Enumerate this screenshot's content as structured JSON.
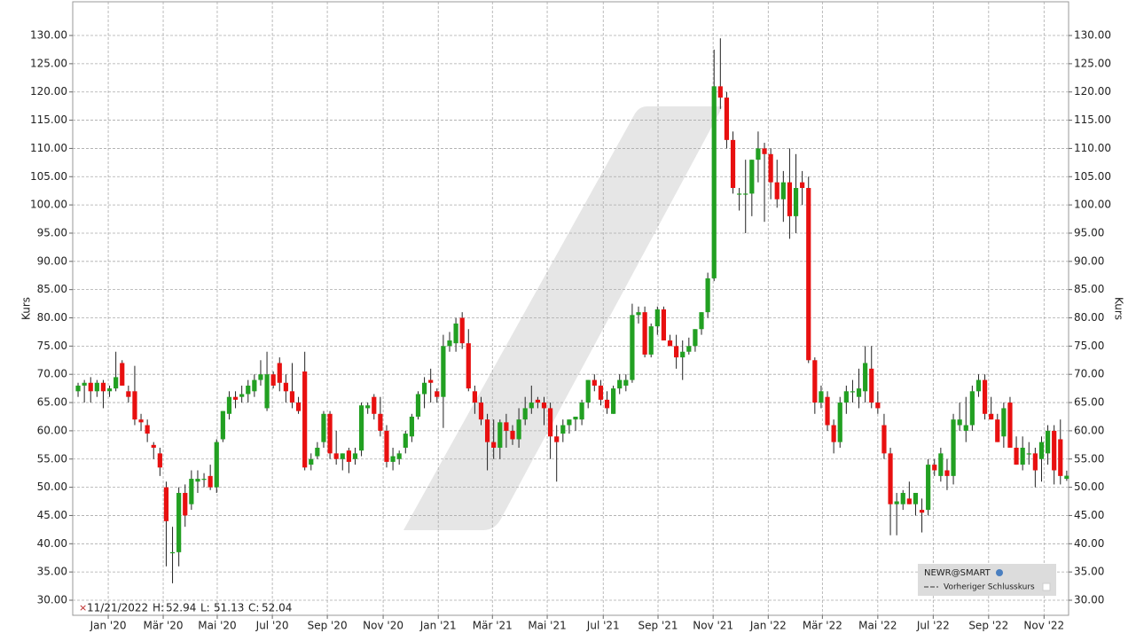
{
  "chart_data": {
    "type": "candlestick",
    "y_label": "Kurs",
    "ylim": [
      27.33,
      135.97
    ],
    "yticks": [
      {
        "value": 30,
        "label": "30.00"
      },
      {
        "value": 35,
        "label": "35.00"
      },
      {
        "value": 40,
        "label": "40.00"
      },
      {
        "value": 45,
        "label": "45.00"
      },
      {
        "value": 50,
        "label": "50.00"
      },
      {
        "value": 55,
        "label": "55.00"
      },
      {
        "value": 60,
        "label": "60.00"
      },
      {
        "value": 65,
        "label": "65.00"
      },
      {
        "value": 70,
        "label": "70.00"
      },
      {
        "value": 75,
        "label": "75.00"
      },
      {
        "value": 80,
        "label": "80.00"
      },
      {
        "value": 85,
        "label": "85.00"
      },
      {
        "value": 90,
        "label": "90.00"
      },
      {
        "value": 95,
        "label": "95.00"
      },
      {
        "value": 100,
        "label": "100.00"
      },
      {
        "value": 105,
        "label": "105.00"
      },
      {
        "value": 110,
        "label": "110.00"
      },
      {
        "value": 115,
        "label": "115.00"
      },
      {
        "value": 120,
        "label": "120.00"
      },
      {
        "value": 125,
        "label": "125.00"
      },
      {
        "value": 130,
        "label": "130.00"
      }
    ],
    "xlim": [
      -0.85,
      157.3
    ],
    "xticks": [
      {
        "value": 4.79,
        "label": "Jan '20"
      },
      {
        "value": 13.52,
        "label": "Mär '20"
      },
      {
        "value": 22.1,
        "label": "Mai '20"
      },
      {
        "value": 30.85,
        "label": "Jul '20"
      },
      {
        "value": 39.58,
        "label": "Sep '20"
      },
      {
        "value": 48.45,
        "label": "Nov '20"
      },
      {
        "value": 57.2,
        "label": "Jan '21"
      },
      {
        "value": 65.8,
        "label": "Mär '21"
      },
      {
        "value": 74.5,
        "label": "Mai '21"
      },
      {
        "value": 83.4,
        "label": "Jul '21"
      },
      {
        "value": 92.1,
        "label": "Sep '21"
      },
      {
        "value": 100.85,
        "label": "Nov '21"
      },
      {
        "value": 109.6,
        "label": "Jan '22"
      },
      {
        "value": 118.2,
        "label": "Mär '22"
      },
      {
        "value": 127,
        "label": "Mai '22"
      },
      {
        "value": 135.8,
        "label": "Jul '22"
      },
      {
        "value": 144.6,
        "label": "Sep '22"
      },
      {
        "value": 153.4,
        "label": "Nov '22"
      }
    ],
    "grid": true,
    "up_color": "#22a022",
    "down_color": "#e81010",
    "x": [
      0,
      1,
      2,
      3,
      4,
      5,
      6,
      7,
      8,
      9,
      10,
      11,
      12,
      13,
      14,
      15,
      16,
      17,
      18,
      19,
      20,
      21,
      22,
      23,
      24,
      25,
      26,
      27,
      28,
      29,
      30,
      31,
      32,
      33,
      34,
      35,
      36,
      37,
      38,
      39,
      40,
      41,
      42,
      43,
      44,
      45,
      46,
      47,
      48,
      49,
      50,
      51,
      52,
      53,
      54,
      55,
      56,
      57,
      58,
      59,
      60,
      61,
      62,
      63,
      64,
      65,
      66,
      67,
      68,
      69,
      70,
      71,
      72,
      73,
      74,
      75,
      76,
      77,
      78,
      79,
      80,
      81,
      82,
      83,
      84,
      85,
      86,
      87,
      88,
      89,
      90,
      91,
      92,
      93,
      94,
      95,
      96,
      97,
      98,
      99,
      100,
      101,
      102,
      103,
      104,
      105,
      106,
      107,
      108,
      109,
      110,
      111,
      112,
      113,
      114,
      115,
      116,
      117,
      118,
      119,
      120,
      121,
      122,
      123,
      124,
      125,
      126,
      127,
      128,
      129,
      130,
      131,
      132,
      133,
      134,
      135,
      136,
      137,
      138,
      139,
      140,
      141,
      142,
      143,
      144,
      145,
      146,
      147,
      148,
      149,
      150,
      151,
      152,
      153,
      154,
      155,
      156,
      157
    ],
    "ohlc": [
      [
        67,
        68.5,
        66,
        68
      ],
      [
        68,
        69,
        65,
        68.5
      ],
      [
        68.5,
        69.5,
        65,
        67
      ],
      [
        67,
        69,
        66,
        68.5
      ],
      [
        68.5,
        69,
        64,
        67
      ],
      [
        67,
        68,
        66,
        67.5
      ],
      [
        67.5,
        74,
        67,
        69.5
      ],
      [
        72,
        72.5,
        68,
        68
      ],
      [
        67,
        68,
        65,
        66
      ],
      [
        67,
        71.5,
        61,
        62
      ],
      [
        62,
        63,
        60,
        61.5
      ],
      [
        61,
        62,
        58,
        59.5
      ],
      [
        57.5,
        58,
        55,
        57
      ],
      [
        56,
        57,
        52,
        53.5
      ],
      [
        50,
        51,
        36,
        44
      ],
      [
        38.5,
        43,
        33,
        38.5
      ],
      [
        38.5,
        50,
        36,
        49
      ],
      [
        49,
        50.5,
        43,
        45
      ],
      [
        47,
        53,
        46,
        51.5
      ],
      [
        51,
        53,
        49,
        51.5
      ],
      [
        51.5,
        52.5,
        50,
        51.5
      ],
      [
        52,
        54,
        49.5,
        50
      ],
      [
        50,
        58.5,
        49,
        58
      ],
      [
        58.5,
        63.5,
        58,
        63.5
      ],
      [
        63,
        67,
        62,
        66
      ],
      [
        66,
        67,
        64,
        65.5
      ],
      [
        66,
        68,
        65,
        66.5
      ],
      [
        66.5,
        69,
        65,
        68
      ],
      [
        67,
        70,
        66,
        69
      ],
      [
        69,
        72.5,
        68,
        70
      ],
      [
        64,
        74,
        63.5,
        70
      ],
      [
        70,
        70.5,
        67.5,
        68
      ],
      [
        72,
        73,
        67,
        68.5
      ],
      [
        68.5,
        70,
        65,
        67
      ],
      [
        67,
        72,
        64,
        65
      ],
      [
        65,
        66,
        63,
        63.5
      ],
      [
        70.5,
        74,
        53,
        53.5
      ],
      [
        54,
        56,
        53,
        55
      ],
      [
        55.5,
        58,
        55,
        57
      ],
      [
        58,
        63.5,
        57,
        63
      ],
      [
        63,
        63.5,
        55,
        56
      ],
      [
        56,
        60,
        54,
        55
      ],
      [
        55,
        56,
        53,
        56
      ],
      [
        56.5,
        57,
        52.5,
        54.5
      ],
      [
        55,
        57,
        54,
        56
      ],
      [
        56.5,
        65,
        55.5,
        64.5
      ],
      [
        64,
        65,
        63,
        64.5
      ],
      [
        66,
        66.5,
        62,
        63
      ],
      [
        63,
        66,
        59,
        60
      ],
      [
        60,
        61,
        53.5,
        54.5
      ],
      [
        54.5,
        57,
        53,
        55.5
      ],
      [
        55,
        56.5,
        54,
        56
      ],
      [
        57,
        60,
        56,
        59.5
      ],
      [
        59,
        63,
        58,
        62.5
      ],
      [
        62.5,
        67,
        62,
        66.5
      ],
      [
        66.5,
        69.5,
        64,
        68.5
      ],
      [
        69,
        71,
        65,
        68.5
      ],
      [
        67,
        67.5,
        65,
        66
      ],
      [
        66,
        77,
        60.5,
        75
      ],
      [
        75,
        77.5,
        74,
        76
      ],
      [
        75.5,
        80,
        74,
        79
      ],
      [
        80,
        81,
        74.5,
        75.5
      ],
      [
        75.5,
        78,
        67,
        67.5
      ],
      [
        67,
        68,
        63,
        65
      ],
      [
        65,
        66,
        61,
        62
      ],
      [
        62,
        63,
        53,
        58
      ],
      [
        58,
        62,
        55,
        57
      ],
      [
        57,
        62,
        55,
        61.5
      ],
      [
        61.5,
        63,
        57,
        60
      ],
      [
        60,
        61,
        57.5,
        58.5
      ],
      [
        58.5,
        64,
        57,
        62
      ],
      [
        62,
        66,
        61,
        64
      ],
      [
        64,
        68,
        63,
        65
      ],
      [
        65.5,
        66,
        64,
        65
      ],
      [
        65,
        66,
        61,
        64
      ],
      [
        64,
        65,
        55,
        59
      ],
      [
        59,
        61,
        51,
        58
      ],
      [
        59.5,
        62,
        58,
        61
      ],
      [
        61,
        62,
        59.5,
        62
      ],
      [
        62,
        62.5,
        60,
        62.5
      ],
      [
        62,
        65.5,
        61,
        65
      ],
      [
        65,
        69,
        64,
        69
      ],
      [
        69,
        70,
        67,
        68
      ],
      [
        68,
        69,
        64.5,
        65.5
      ],
      [
        65.5,
        67,
        63,
        64
      ],
      [
        63,
        68,
        63,
        67.5
      ],
      [
        67.5,
        70,
        66.5,
        69
      ],
      [
        68,
        70,
        67,
        69
      ],
      [
        69,
        82.5,
        68.5,
        80.5
      ],
      [
        80.5,
        82,
        79,
        81
      ],
      [
        81,
        82,
        73,
        73.5
      ],
      [
        73.5,
        79,
        73,
        78.5
      ],
      [
        78.5,
        82,
        77,
        81.5
      ],
      [
        81.5,
        82,
        76,
        76
      ],
      [
        76,
        77,
        75,
        75
      ],
      [
        75,
        77,
        71,
        73
      ],
      [
        73,
        76,
        69,
        74
      ],
      [
        74,
        76.5,
        73.5,
        75
      ],
      [
        75,
        78,
        74,
        78
      ],
      [
        78,
        81,
        77,
        81
      ],
      [
        81,
        88,
        80,
        87
      ],
      [
        87,
        127.5,
        86.5,
        121
      ],
      [
        121,
        129.5,
        117,
        119
      ],
      [
        119,
        120,
        110,
        111.5
      ],
      [
        111.5,
        113,
        102,
        103
      ],
      [
        102,
        103,
        99,
        102
      ],
      [
        102,
        108,
        95,
        102
      ],
      [
        102,
        108,
        98,
        108
      ],
      [
        108,
        113,
        104,
        110
      ],
      [
        110,
        111,
        97,
        109
      ],
      [
        109,
        110,
        101,
        104
      ],
      [
        104,
        108,
        99.5,
        101
      ],
      [
        101,
        106,
        97,
        104
      ],
      [
        104,
        110,
        94,
        98
      ],
      [
        98,
        109,
        95,
        103
      ],
      [
        104,
        106,
        100,
        103
      ],
      [
        103,
        105,
        72,
        72.5
      ],
      [
        72.5,
        73,
        63,
        65
      ],
      [
        65,
        68,
        64,
        67
      ],
      [
        66,
        67,
        60,
        61
      ],
      [
        61,
        62,
        56,
        58
      ],
      [
        58,
        66,
        57,
        65
      ],
      [
        65,
        68,
        63,
        67
      ],
      [
        67,
        69,
        65,
        67
      ],
      [
        66,
        71,
        64,
        67.5
      ],
      [
        67,
        75,
        65,
        72
      ],
      [
        71,
        75,
        64,
        65
      ],
      [
        65,
        67,
        63,
        64
      ],
      [
        61,
        63,
        55,
        56
      ],
      [
        56,
        57,
        41.5,
        47
      ],
      [
        47,
        49,
        41.5,
        47.5
      ],
      [
        47,
        49.5,
        46,
        49
      ],
      [
        48,
        51,
        47,
        47
      ],
      [
        47,
        49,
        45,
        49
      ],
      [
        46,
        48,
        42,
        45.5
      ],
      [
        46,
        55,
        45,
        54
      ],
      [
        54,
        55,
        52,
        53
      ],
      [
        52,
        57,
        51,
        56
      ],
      [
        53,
        55,
        49.5,
        52
      ],
      [
        52,
        63,
        50.5,
        62
      ],
      [
        61,
        65,
        60,
        62
      ],
      [
        60,
        66,
        58,
        61
      ],
      [
        61,
        68,
        60,
        67
      ],
      [
        67,
        70,
        66,
        69
      ],
      [
        69,
        70,
        62,
        63
      ],
      [
        63,
        66,
        62,
        62
      ],
      [
        62,
        63,
        58,
        58
      ],
      [
        59,
        65,
        57,
        64
      ],
      [
        65,
        66,
        57,
        57
      ],
      [
        57,
        59,
        54,
        54
      ],
      [
        54,
        59,
        53,
        57
      ],
      [
        56,
        58,
        54,
        56
      ],
      [
        56,
        57,
        50,
        53
      ],
      [
        55,
        59,
        51,
        58
      ],
      [
        56,
        61,
        54,
        60
      ],
      [
        60,
        61,
        50.5,
        53
      ],
      [
        58.5,
        62,
        50.5,
        52
      ],
      [
        51.5,
        52.94,
        51.13,
        52.04
      ]
    ],
    "info": {
      "date": "11/21/2022",
      "items": [
        {
          "label": "H:",
          "value": 52.94
        },
        {
          "label": "L:",
          "value": 51.13
        },
        {
          "label": "C:",
          "value": 52.04
        }
      ]
    },
    "legend": {
      "title": "NEWR@SMART",
      "entry": "Vorheriger Schlusskurs"
    }
  }
}
